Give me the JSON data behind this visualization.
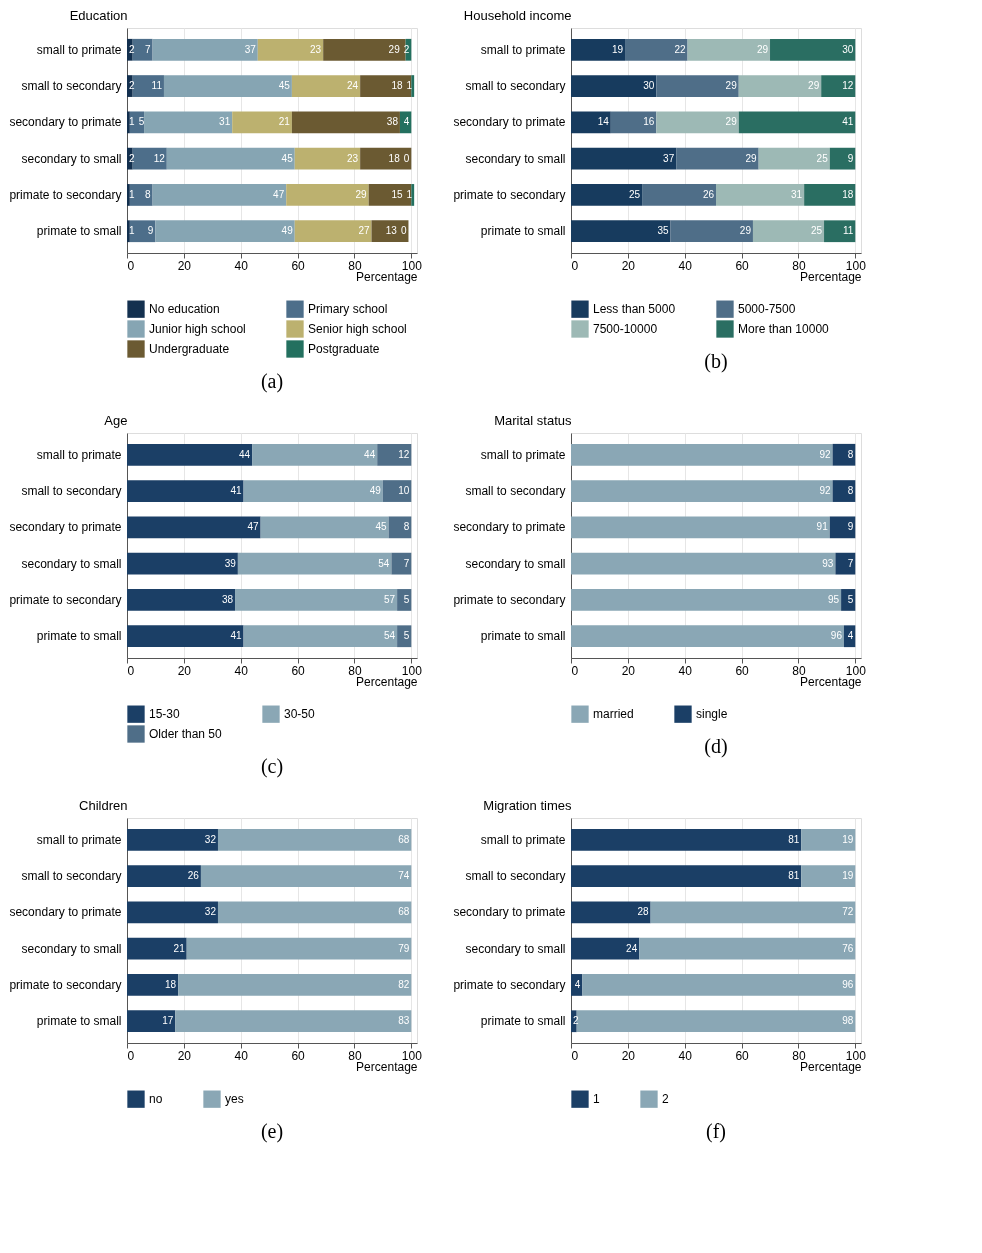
{
  "chart_data": [
    {
      "type": "bar",
      "orientation": "horizontal",
      "stacked": true,
      "ylabel": "Education",
      "xlabel": "Percentage",
      "annotations": [
        "(a)"
      ],
      "categories": [
        "small to primate",
        "small to secondary",
        "secondary to primate",
        "secondary to small",
        "primate to secondary",
        "primate to small"
      ],
      "xlim": [
        0,
        102
      ],
      "xticks": [
        0,
        20,
        40,
        60,
        80,
        100
      ],
      "grid": "x",
      "legend": "bottom",
      "data_labels": true,
      "series": [
        {
          "name": "No education",
          "color": "#13304f",
          "values": [
            2,
            2,
            1,
            2,
            1,
            1
          ]
        },
        {
          "name": "Primary school",
          "color": "#4d6e8a",
          "values": [
            7,
            11,
            5,
            12,
            8,
            9
          ]
        },
        {
          "name": "Junior high school",
          "color": "#86a5b3",
          "values": [
            37,
            45,
            31,
            45,
            47,
            49
          ]
        },
        {
          "name": "Senior high school",
          "color": "#bcb16f",
          "values": [
            23,
            24,
            21,
            23,
            29,
            27
          ]
        },
        {
          "name": "Undergraduate",
          "color": "#6b5a32",
          "values": [
            29,
            18,
            38,
            18,
            15,
            13
          ]
        },
        {
          "name": "Postgraduate",
          "color": "#23705f",
          "values": [
            2,
            1,
            4,
            0,
            1,
            0
          ]
        }
      ]
    },
    {
      "type": "bar",
      "orientation": "horizontal",
      "stacked": true,
      "ylabel": "Household income",
      "xlabel": "Percentage",
      "annotations": [
        "(b)"
      ],
      "categories": [
        "small to primate",
        "small to secondary",
        "secondary to primate",
        "secondary to small",
        "primate to secondary",
        "primate to small"
      ],
      "xlim": [
        0,
        102
      ],
      "xticks": [
        0,
        20,
        40,
        60,
        80,
        100
      ],
      "grid": "x",
      "legend": "bottom",
      "data_labels": true,
      "series": [
        {
          "name": "Less than 5000",
          "color": "#173b5e",
          "values": [
            19,
            30,
            14,
            37,
            25,
            35
          ]
        },
        {
          "name": "5000-7500",
          "color": "#4f6e88",
          "values": [
            22,
            29,
            16,
            29,
            26,
            29
          ]
        },
        {
          "name": "7500-10000",
          "color": "#9db9b5",
          "values": [
            29,
            29,
            29,
            25,
            31,
            25
          ]
        },
        {
          "name": "More than 10000",
          "color": "#2a6e62",
          "values": [
            30,
            12,
            41,
            9,
            18,
            11
          ]
        }
      ]
    },
    {
      "type": "bar",
      "orientation": "horizontal",
      "stacked": true,
      "ylabel": "Age",
      "xlabel": "Percentage",
      "annotations": [
        "(c)"
      ],
      "categories": [
        "small to primate",
        "small to secondary",
        "secondary to primate",
        "secondary to small",
        "primate to secondary",
        "primate to small"
      ],
      "xlim": [
        0,
        102
      ],
      "xticks": [
        0,
        20,
        40,
        60,
        80,
        100
      ],
      "grid": "x",
      "legend": "bottom",
      "data_labels": true,
      "series": [
        {
          "name": "15-30",
          "color": "#1b3f66",
          "values": [
            44,
            41,
            47,
            39,
            38,
            41
          ]
        },
        {
          "name": "30-50",
          "color": "#8aa7b5",
          "values": [
            44,
            49,
            45,
            54,
            57,
            54
          ]
        },
        {
          "name": "Older than 50",
          "color": "#4f6e88",
          "values": [
            12,
            10,
            8,
            7,
            5,
            5
          ]
        }
      ]
    },
    {
      "type": "bar",
      "orientation": "horizontal",
      "stacked": true,
      "ylabel": "Marital status",
      "xlabel": "Percentage",
      "annotations": [
        "(d)"
      ],
      "categories": [
        "small to primate",
        "small to secondary",
        "secondary to primate",
        "secondary to small",
        "primate to secondary",
        "primate to small"
      ],
      "xlim": [
        0,
        102
      ],
      "xticks": [
        0,
        20,
        40,
        60,
        80,
        100
      ],
      "grid": "x",
      "legend": "bottom",
      "data_labels": true,
      "series": [
        {
          "name": "married",
          "color": "#8aa7b5",
          "values": [
            92,
            92,
            91,
            93,
            95,
            96
          ]
        },
        {
          "name": "single",
          "color": "#1b3f66",
          "values": [
            8,
            8,
            9,
            7,
            5,
            4
          ]
        }
      ]
    },
    {
      "type": "bar",
      "orientation": "horizontal",
      "stacked": true,
      "ylabel": "Children",
      "xlabel": "Percentage",
      "annotations": [
        "(e)"
      ],
      "categories": [
        "small to primate",
        "small to secondary",
        "secondary to primate",
        "secondary to small",
        "primate to secondary",
        "primate to small"
      ],
      "xlim": [
        0,
        102
      ],
      "xticks": [
        0,
        20,
        40,
        60,
        80,
        100
      ],
      "grid": "x",
      "legend": "bottom",
      "data_labels": true,
      "series": [
        {
          "name": "no",
          "color": "#1b3f66",
          "values": [
            32,
            26,
            32,
            21,
            18,
            17
          ]
        },
        {
          "name": "yes",
          "color": "#8aa7b5",
          "values": [
            68,
            74,
            68,
            79,
            82,
            83
          ]
        }
      ]
    },
    {
      "type": "bar",
      "orientation": "horizontal",
      "stacked": true,
      "ylabel": "Migration times",
      "xlabel": "Percentage",
      "annotations": [
        "(f)"
      ],
      "categories": [
        "small to primate",
        "small to secondary",
        "secondary to primate",
        "secondary to small",
        "primate to secondary",
        "primate to small"
      ],
      "xlim": [
        0,
        102
      ],
      "xticks": [
        0,
        20,
        40,
        60,
        80,
        100
      ],
      "grid": "x",
      "legend": "bottom",
      "data_labels": true,
      "series": [
        {
          "name": "1",
          "color": "#1b3f66",
          "values": [
            81,
            81,
            28,
            24,
            4,
            2
          ]
        },
        {
          "name": "2",
          "color": "#8aa7b5",
          "values": [
            19,
            19,
            72,
            76,
            96,
            98
          ]
        }
      ]
    }
  ]
}
